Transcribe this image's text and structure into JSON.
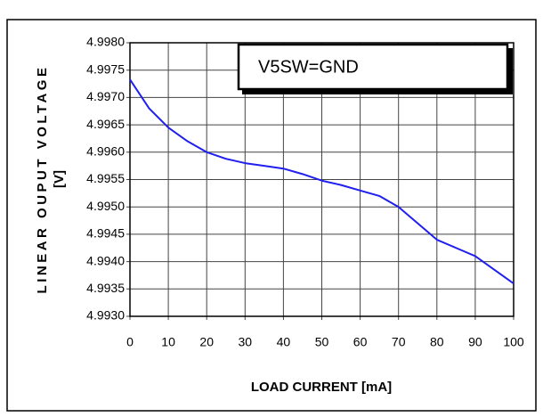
{
  "chart_data": {
    "type": "line",
    "xlabel": "LOAD CURRENT [mA]",
    "ylabel": [
      "LINEAR OUPUT VOLTAGE",
      "[V]"
    ],
    "annotations": [
      "V5SW=GND"
    ],
    "x": [
      0,
      5,
      10,
      15,
      20,
      25,
      30,
      35,
      40,
      45,
      50,
      55,
      60,
      65,
      70,
      75,
      80,
      85,
      90,
      95,
      100
    ],
    "values": [
      4.99733,
      4.9968,
      4.99645,
      4.9962,
      4.996,
      4.99588,
      4.9958,
      4.99575,
      4.9957,
      4.9956,
      4.99548,
      4.9954,
      4.9953,
      4.9952,
      4.995,
      4.9947,
      4.9944,
      4.99425,
      4.9941,
      4.99385,
      4.9936
    ],
    "color": "#1f1fef",
    "xlim": [
      0,
      100
    ],
    "xticks": [
      0,
      10,
      20,
      30,
      40,
      50,
      60,
      70,
      80,
      90,
      100
    ],
    "ylim": [
      4.993,
      4.998
    ],
    "yticks": [
      {
        "value": 4.993,
        "label": "4.9930"
      },
      4.9935,
      {
        "value": 4.994,
        "label": "4.9940"
      },
      4.9945,
      {
        "value": 4.995,
        "label": "4.9950"
      },
      4.9955,
      {
        "value": 4.996,
        "label": "4.9960"
      },
      4.9965,
      {
        "value": 4.997,
        "label": "4.9970"
      },
      4.9975,
      {
        "value": 4.998,
        "label": "4.9980"
      }
    ],
    "grid": true
  }
}
